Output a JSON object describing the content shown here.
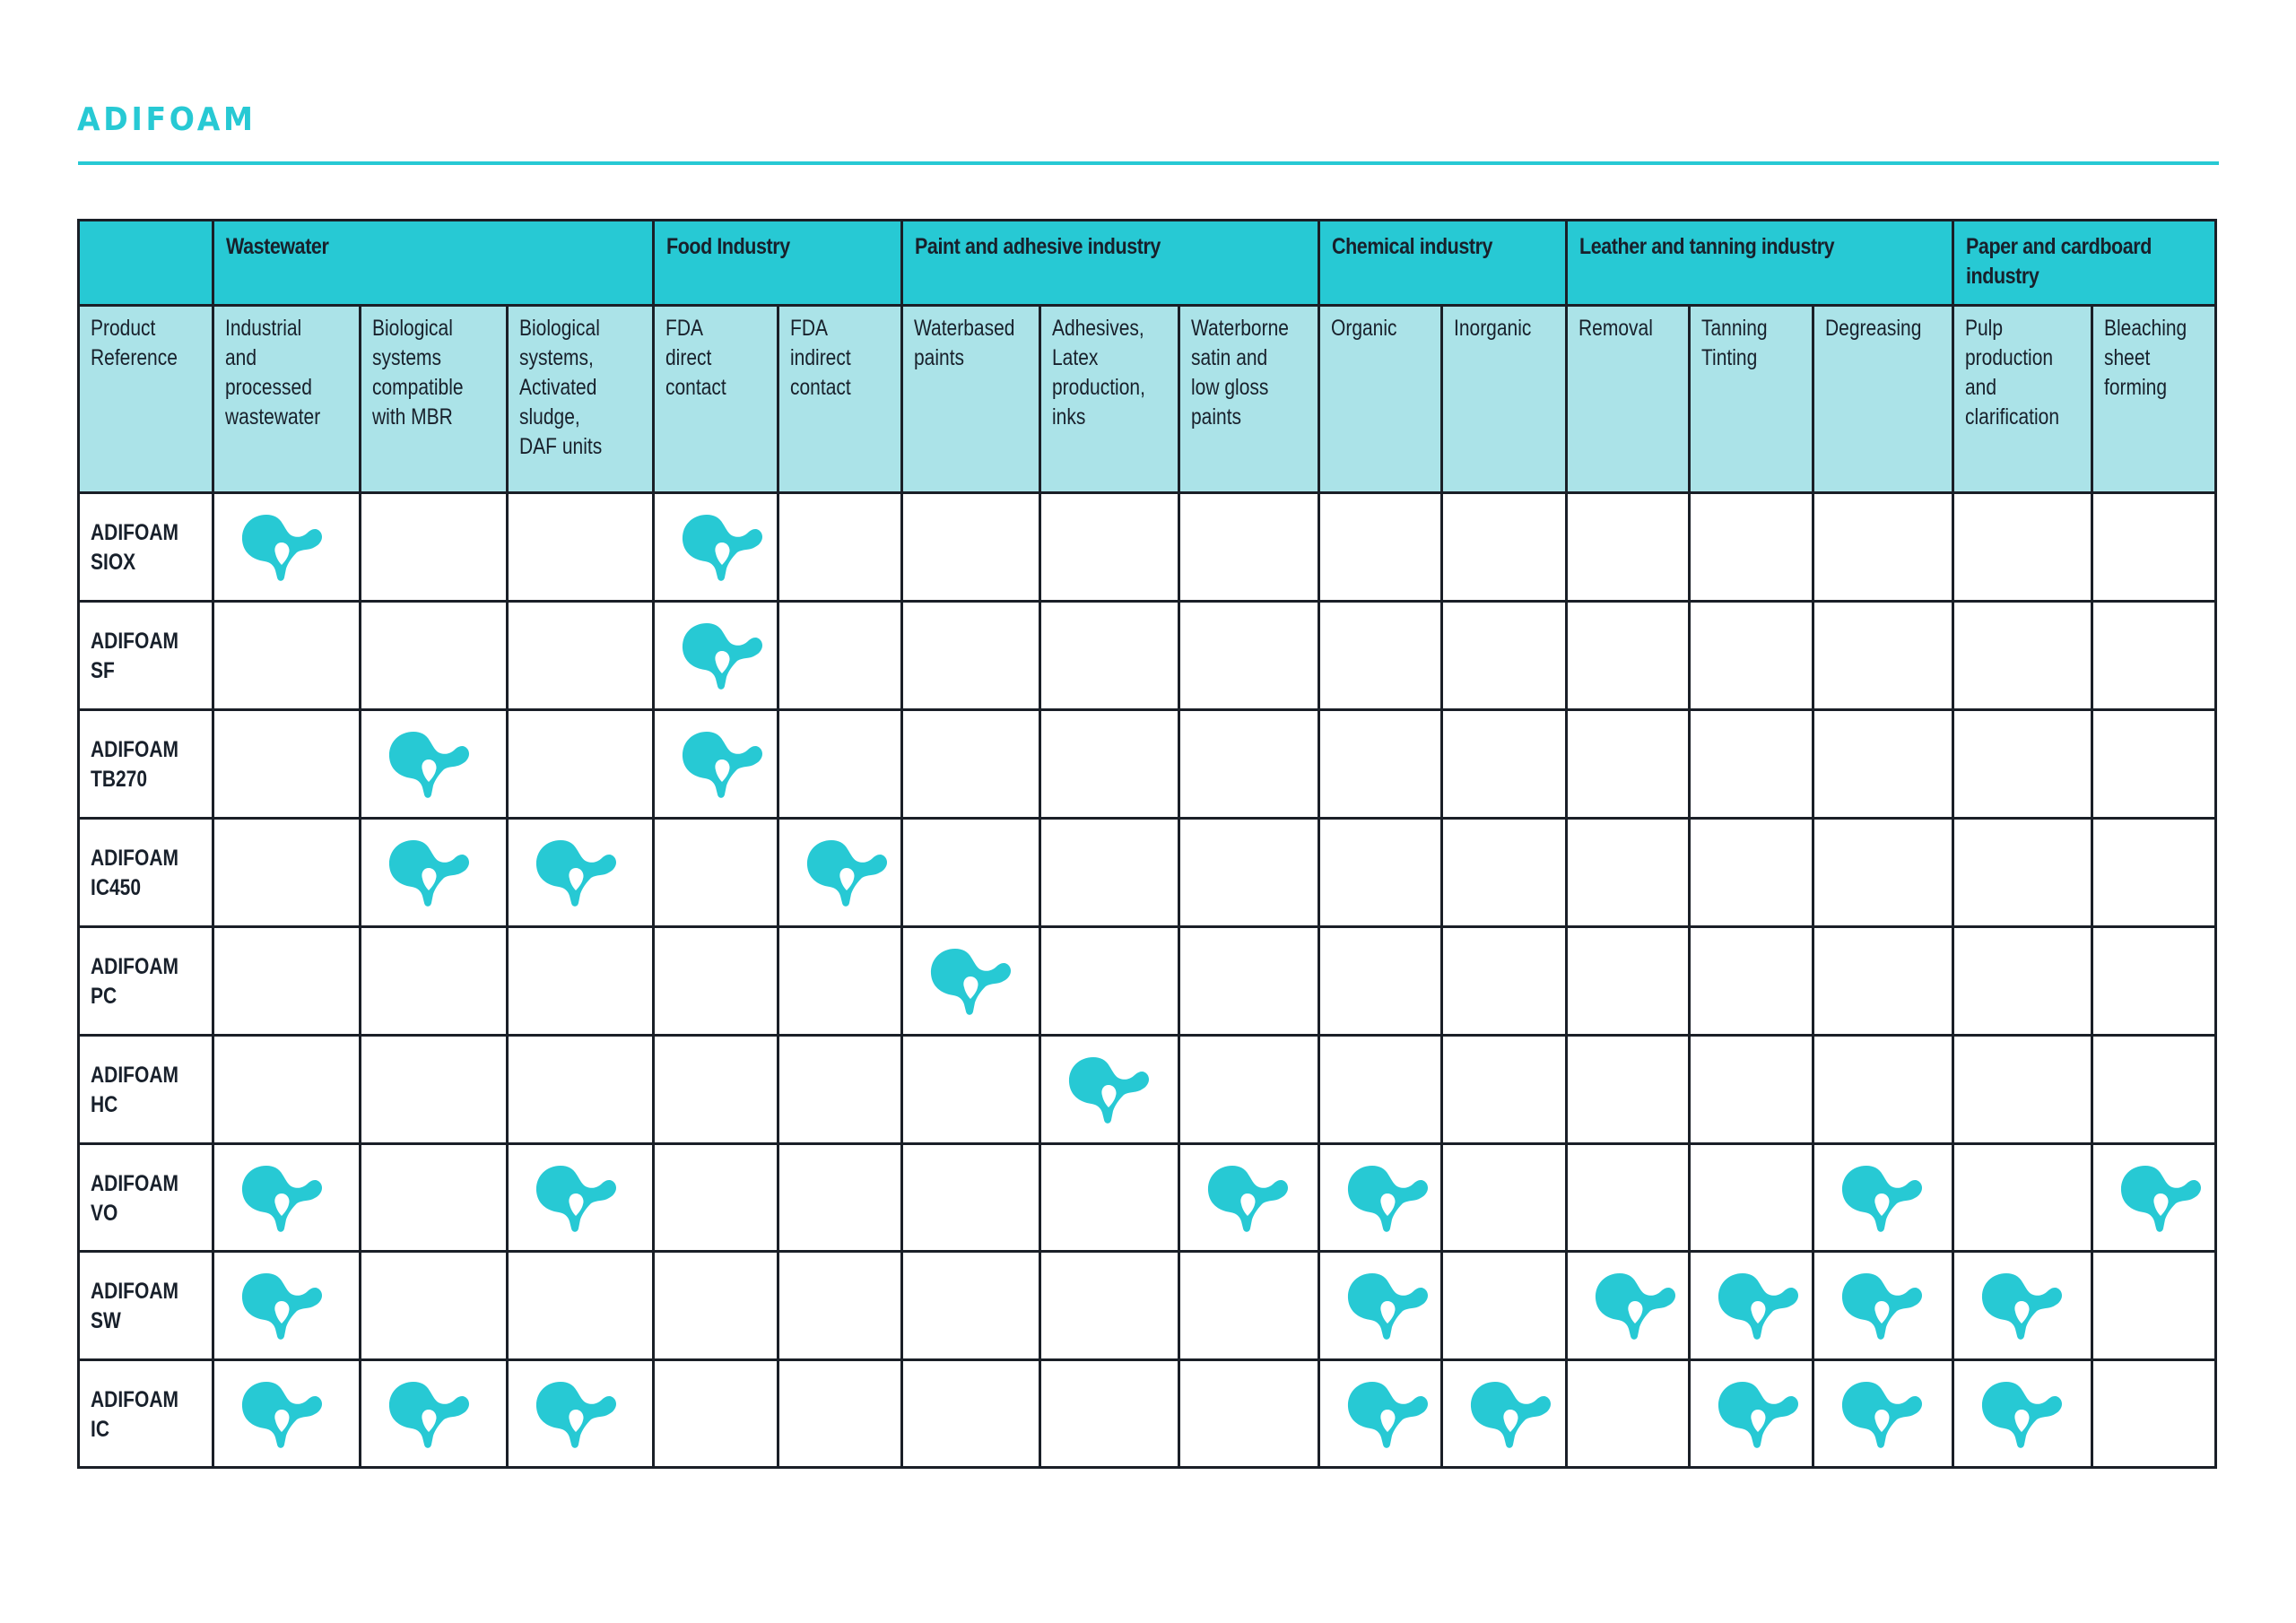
{
  "page": {
    "title": "ADIFOAM",
    "accent_color": "#27c9d4",
    "group_header_color": "#27c9d4",
    "sub_header_color": "#abe3e8",
    "grid_color": "#1a1f27"
  },
  "table": {
    "product_header": "Product\nReference",
    "groups": [
      {
        "label": "Wastewater",
        "span": 3
      },
      {
        "label": "Food Industry",
        "span": 2
      },
      {
        "label": "Paint and adhesive industry",
        "span": 3
      },
      {
        "label": "Chemical industry",
        "span": 2
      },
      {
        "label": "Leather and tanning industry",
        "span": 3
      },
      {
        "label": "Paper and cardboard industry",
        "span": 2
      }
    ],
    "columns": [
      "Industrial\nand\nprocessed\nwastewater",
      "Biological\nsystems\ncompatible\nwith MBR",
      "Biological\nsystems,\nActivated\nsludge,\nDAF units",
      "FDA\ndirect\ncontact",
      "FDA\nindirect\ncontact",
      "Waterbased\npaints",
      "Adhesives,\nLatex\nproduction,\ninks",
      "Waterborne\nsatin and\nlow gloss\npaints",
      "Organic",
      "Inorganic",
      "Removal",
      "Tanning\nTinting",
      "Degreasing",
      "Pulp\nproduction\nand\nclarification",
      "Bleaching\nsheet\nforming"
    ],
    "mark_icon": "adisseo-molecule-icon",
    "rows": [
      {
        "product": "ADIFOAM\nSIOX",
        "marks": [
          1,
          0,
          0,
          1,
          0,
          0,
          0,
          0,
          0,
          0,
          0,
          0,
          0,
          0,
          0
        ]
      },
      {
        "product": "ADIFOAM\nSF",
        "marks": [
          0,
          0,
          0,
          1,
          0,
          0,
          0,
          0,
          0,
          0,
          0,
          0,
          0,
          0,
          0
        ]
      },
      {
        "product": "ADIFOAM\nTB270",
        "marks": [
          0,
          1,
          0,
          1,
          0,
          0,
          0,
          0,
          0,
          0,
          0,
          0,
          0,
          0,
          0
        ]
      },
      {
        "product": "ADIFOAM\nIC450",
        "marks": [
          0,
          1,
          1,
          0,
          1,
          0,
          0,
          0,
          0,
          0,
          0,
          0,
          0,
          0,
          0
        ]
      },
      {
        "product": "ADIFOAM\nPC",
        "marks": [
          0,
          0,
          0,
          0,
          0,
          1,
          0,
          0,
          0,
          0,
          0,
          0,
          0,
          0,
          0
        ]
      },
      {
        "product": "ADIFOAM\nHC",
        "marks": [
          0,
          0,
          0,
          0,
          0,
          0,
          1,
          0,
          0,
          0,
          0,
          0,
          0,
          0,
          0
        ]
      },
      {
        "product": "ADIFOAM\nVO",
        "marks": [
          1,
          0,
          1,
          0,
          0,
          0,
          0,
          1,
          1,
          0,
          0,
          0,
          1,
          0,
          1
        ]
      },
      {
        "product": "ADIFOAM\nSW",
        "marks": [
          1,
          0,
          0,
          0,
          0,
          0,
          0,
          0,
          1,
          0,
          1,
          1,
          1,
          1,
          0
        ]
      },
      {
        "product": "ADIFOAM\nIC",
        "marks": [
          1,
          1,
          1,
          0,
          0,
          0,
          0,
          0,
          1,
          1,
          0,
          1,
          1,
          1,
          0
        ]
      }
    ]
  }
}
